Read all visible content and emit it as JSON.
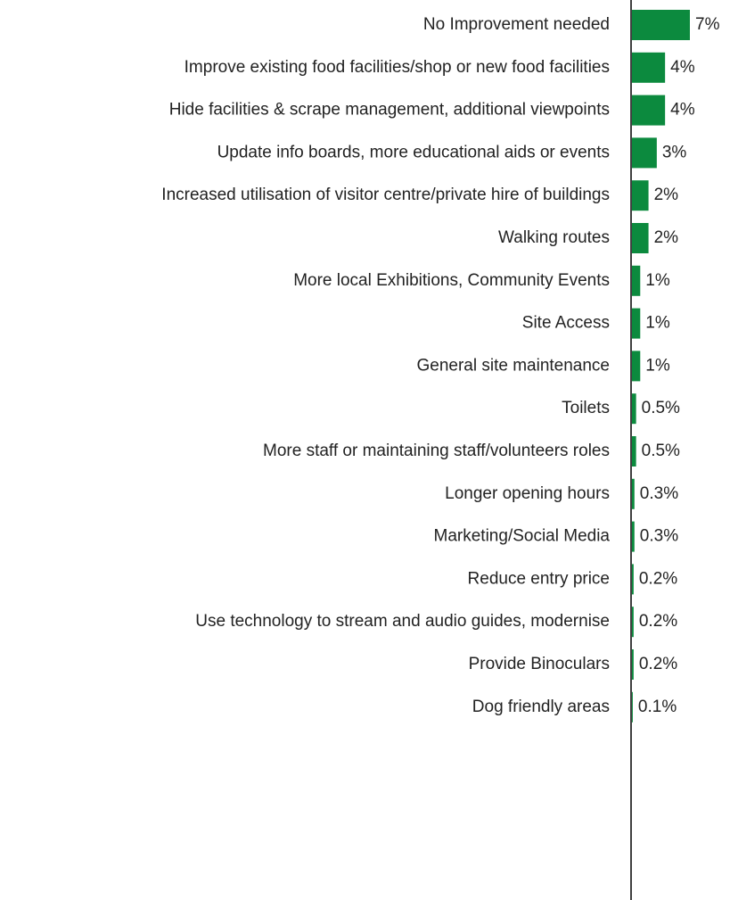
{
  "chart_data": {
    "type": "bar",
    "orientation": "horizontal",
    "color": "#0c8a3e",
    "categories": [
      "No Improvement needed",
      "Improve existing food facilities/shop or new food facilities",
      "Hide facilities & scrape management, additional viewpoints",
      "Update info boards, more educational aids or events",
      "Increased utilisation of visitor centre/private hire of buildings",
      "Walking routes",
      "More local Exhibitions, Community Events",
      "Site Access",
      "General site maintenance",
      "Toilets",
      "More staff or maintaining staff/volunteers roles",
      "Longer opening hours",
      "Marketing/Social Media",
      "Reduce entry price",
      "Use technology to stream and audio guides, modernise",
      "Provide Binoculars",
      "Dog friendly areas"
    ],
    "values": [
      7,
      4,
      4,
      3,
      2,
      2,
      1,
      1,
      1,
      0.5,
      0.5,
      0.3,
      0.3,
      0.2,
      0.2,
      0.2,
      0.1
    ],
    "value_labels": [
      "7%",
      "4%",
      "4%",
      "3%",
      "2%",
      "2%",
      "1%",
      "1%",
      "1%",
      "0.5%",
      "0.5%",
      "0.3%",
      "0.3%",
      "0.2%",
      "0.2%",
      "0.2%",
      "0.1%"
    ]
  }
}
